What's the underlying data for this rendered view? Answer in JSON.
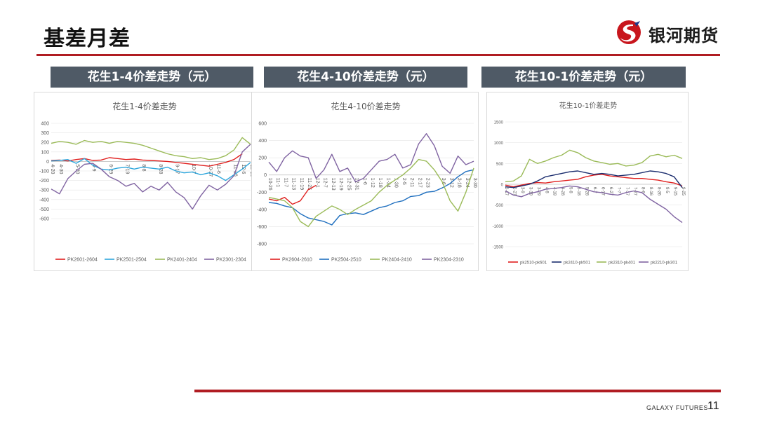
{
  "page": {
    "title": "基差月差",
    "logo_text": "银河期货",
    "footer_brand": "GALAXY FUTURES",
    "page_number": "11"
  },
  "colors": {
    "red": "#e0201f",
    "lightblue": "#2ea6dc",
    "blue": "#1f6fbf",
    "navy": "#1b2d6e",
    "green": "#9bbb59",
    "purple": "#8064a2",
    "accent": "#b01c22",
    "header_bg": "#4f5a66"
  },
  "panels": [
    {
      "header": "花生1-4价差走势（元）"
    },
    {
      "header": "花生4-10价差走势（元）"
    },
    {
      "header": "花生10-1价差走势（元）"
    }
  ],
  "chart_data": [
    {
      "type": "line",
      "title": "花生1-4价差走势",
      "ylim": [
        -600,
        400
      ],
      "yticks": [
        400,
        300,
        200,
        100,
        0,
        -100,
        -200,
        -300,
        -400,
        -500,
        -600
      ],
      "x": [
        "4-20",
        "4-30",
        "5-10",
        "5-20",
        "5-30",
        "6-9",
        "6-19",
        "6-29",
        "7-9",
        "7-19",
        "7-29",
        "8-8",
        "8-18",
        "8-28",
        "9-7",
        "9-17",
        "9-27",
        "10-7",
        "10-17",
        "10-27",
        "11-6",
        "11-16",
        "11-26",
        "12-6",
        "12-16"
      ],
      "xlabels_shown": [
        "4-20",
        "4-30",
        "5-20",
        "6-9",
        "6-29",
        "7-19",
        "8-8",
        "8-28",
        "9-17",
        "10-7",
        "10-27",
        "11-6",
        "11-26",
        "12-6",
        "12-16"
      ],
      "series": [
        {
          "name": "PK2601-2604",
          "color": "#e0201f",
          "values": [
            10,
            15,
            5,
            20,
            30,
            10,
            15,
            40,
            30,
            20,
            25,
            15,
            10,
            5,
            0,
            -10,
            -20,
            -30,
            -40,
            -50,
            -30,
            -10,
            20,
            80,
            null
          ]
        },
        {
          "name": "PK2501-2504",
          "color": "#2ea6dc",
          "values": [
            5,
            10,
            20,
            -20,
            30,
            -40,
            -80,
            -90,
            -70,
            -60,
            -80,
            -60,
            -70,
            -80,
            -60,
            -100,
            -120,
            -110,
            -140,
            -120,
            -150,
            -200,
            -140,
            -80,
            -10
          ]
        },
        {
          "name": "PK2401-2404",
          "color": "#9bbb59",
          "values": [
            190,
            210,
            200,
            180,
            220,
            200,
            210,
            190,
            210,
            200,
            190,
            170,
            140,
            110,
            80,
            60,
            50,
            30,
            40,
            20,
            30,
            60,
            120,
            250,
            180
          ]
        },
        {
          "name": "PK2301-2304",
          "color": "#8064a2",
          "values": [
            -290,
            -340,
            -180,
            -100,
            -30,
            -20,
            -80,
            -160,
            -200,
            -260,
            -230,
            -320,
            -260,
            -300,
            -220,
            -320,
            -380,
            -500,
            -360,
            -250,
            -300,
            -240,
            -150,
            100,
            180
          ]
        }
      ]
    },
    {
      "type": "line",
      "title": "花生4-10价差走势",
      "ylim": [
        -800,
        600
      ],
      "yticks": [
        600,
        400,
        200,
        0,
        -200,
        -400,
        -600,
        -800
      ],
      "x": [
        "10-26",
        "11-1",
        "11-7",
        "11-13",
        "11-19",
        "11-25",
        "12-1",
        "12-7",
        "12-13",
        "12-19",
        "12-25",
        "12-31",
        "1-6",
        "1-12",
        "1-18",
        "1-24",
        "1-30",
        "2-5",
        "2-11",
        "2-17",
        "2-23",
        "3-1",
        "3-6",
        "3-12",
        "3-18",
        "3-24",
        "3-30"
      ],
      "xlabels_shown": [
        "10-26",
        "11-1",
        "11-7",
        "11-13",
        "11-19",
        "11-25",
        "12-1",
        "12-7",
        "12-13",
        "12-19",
        "12-25",
        "12-31",
        "1-6",
        "1-12",
        "1-18",
        "1-24",
        "1-30",
        "2-5",
        "2-11",
        "2-17",
        "2-23",
        "3-6",
        "3-12",
        "3-18",
        "3-24",
        "3-30"
      ],
      "series": [
        {
          "name": "PK2604-2610",
          "color": "#e0201f",
          "values": [
            -280,
            -300,
            -260,
            -340,
            -300,
            -170,
            -120,
            null,
            null,
            null,
            null,
            null,
            null,
            null,
            null,
            null,
            null,
            null,
            null,
            null,
            null,
            null,
            null,
            null,
            null,
            null,
            null
          ]
        },
        {
          "name": "PK2504-2510",
          "color": "#1f6fbf",
          "values": [
            -320,
            -330,
            -360,
            -380,
            -450,
            -500,
            -520,
            -540,
            -580,
            -470,
            -450,
            -440,
            -460,
            -420,
            -380,
            -360,
            -320,
            -300,
            -250,
            -240,
            -200,
            -190,
            -150,
            -100,
            -20,
            40,
            60
          ]
        },
        {
          "name": "PK2404-2410",
          "color": "#9bbb59",
          "values": [
            -260,
            -280,
            -300,
            -380,
            -540,
            -600,
            -480,
            -420,
            -360,
            -400,
            -460,
            -400,
            -350,
            -300,
            -200,
            -120,
            -60,
            0,
            80,
            180,
            160,
            60,
            -80,
            -300,
            -420,
            -200,
            80
          ]
        },
        {
          "name": "PK2304-2310",
          "color": "#8064a2",
          "values": [
            150,
            40,
            200,
            280,
            220,
            200,
            -40,
            60,
            240,
            40,
            80,
            -80,
            -40,
            60,
            160,
            180,
            240,
            80,
            120,
            360,
            480,
            340,
            100,
            20,
            220,
            120,
            160
          ]
        }
      ]
    },
    {
      "type": "line",
      "title": "花生10-1价差走势",
      "ylim": [
        -1500,
        1500
      ],
      "yticks": [
        1500,
        1000,
        500,
        0,
        -500,
        -1000,
        -1500
      ],
      "x": [
        "2-17",
        "2-27",
        "3-9",
        "3-19",
        "3-29",
        "4-8",
        "4-18",
        "4-28",
        "5-8",
        "5-18",
        "5-28",
        "6-7",
        "6-17",
        "6-27",
        "7-7",
        "7-17",
        "7-27",
        "8-6",
        "8-16",
        "8-26",
        "9-5",
        "9-15",
        "9-25"
      ],
      "xlabels_shown": [
        "2-17",
        "2-27",
        "3-9",
        "3-19",
        "3-29",
        "4-8",
        "4-18",
        "4-28",
        "5-8",
        "5-18",
        "5-28",
        "6-7",
        "6-17",
        "6-27",
        "7-7",
        "7-17",
        "7-27",
        "8-6",
        "8-16",
        "8-26",
        "9-5",
        "9-15",
        "9-25"
      ],
      "series": [
        {
          "name": "pk2510-pk601",
          "color": "#e0201f",
          "values": [
            -20,
            -60,
            -20,
            20,
            40,
            30,
            60,
            80,
            100,
            120,
            180,
            220,
            240,
            200,
            180,
            160,
            140,
            140,
            120,
            100,
            60,
            30,
            -40
          ]
        },
        {
          "name": "pk2410-pk501",
          "color": "#1b2d6e",
          "values": [
            -60,
            -80,
            -40,
            0,
            80,
            180,
            220,
            260,
            300,
            320,
            280,
            240,
            260,
            240,
            200,
            220,
            240,
            280,
            320,
            300,
            260,
            180,
            -80
          ]
        },
        {
          "name": "pk2310-pk401",
          "color": "#9bbb59",
          "values": [
            60,
            80,
            200,
            600,
            500,
            560,
            640,
            700,
            820,
            760,
            640,
            560,
            520,
            480,
            500,
            440,
            460,
            520,
            680,
            720,
            660,
            700,
            620
          ]
        },
        {
          "name": "pk2210-pk301",
          "color": "#8064a2",
          "values": [
            -160,
            -260,
            -300,
            -220,
            -180,
            -120,
            -100,
            -80,
            -40,
            -60,
            -120,
            -180,
            -200,
            -240,
            -260,
            -200,
            -160,
            -200,
            -360,
            -480,
            -600,
            -780,
            -920
          ]
        }
      ]
    }
  ]
}
